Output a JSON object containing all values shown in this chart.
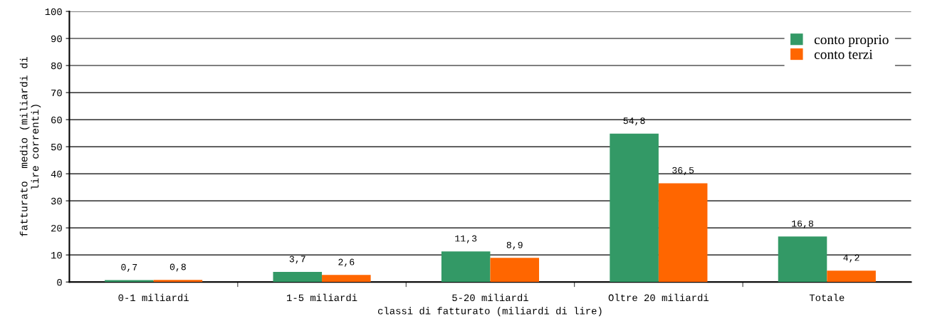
{
  "chart_data": {
    "type": "bar",
    "xlabel": "classi di fatturato (miliardi di lire)",
    "ylabel": "fatturato  medio (miliardi di\nlire correnti)",
    "categories": [
      "0-1 miliardi",
      "1-5 miliardi",
      "5-20 miliardi",
      "Oltre 20 miliardi",
      "Totale"
    ],
    "series": [
      {
        "name": "conto proprio",
        "color": "#339966",
        "values": [
          0.7,
          3.7,
          11.3,
          54.8,
          16.8
        ],
        "value_labels": [
          "0,7",
          "3,7",
          "11,3",
          "54,8",
          "16,8"
        ]
      },
      {
        "name": "conto terzi",
        "color": "#ff6600",
        "values": [
          0.8,
          2.6,
          8.9,
          36.5,
          4.2
        ],
        "value_labels": [
          "0,8",
          "2,6",
          "8,9",
          "36,5",
          "4,2"
        ]
      }
    ],
    "ylim": [
      0,
      100
    ],
    "yticks": [
      0,
      10,
      20,
      30,
      40,
      50,
      60,
      70,
      80,
      90,
      100
    ],
    "grid": "y",
    "legend": "top right"
  }
}
